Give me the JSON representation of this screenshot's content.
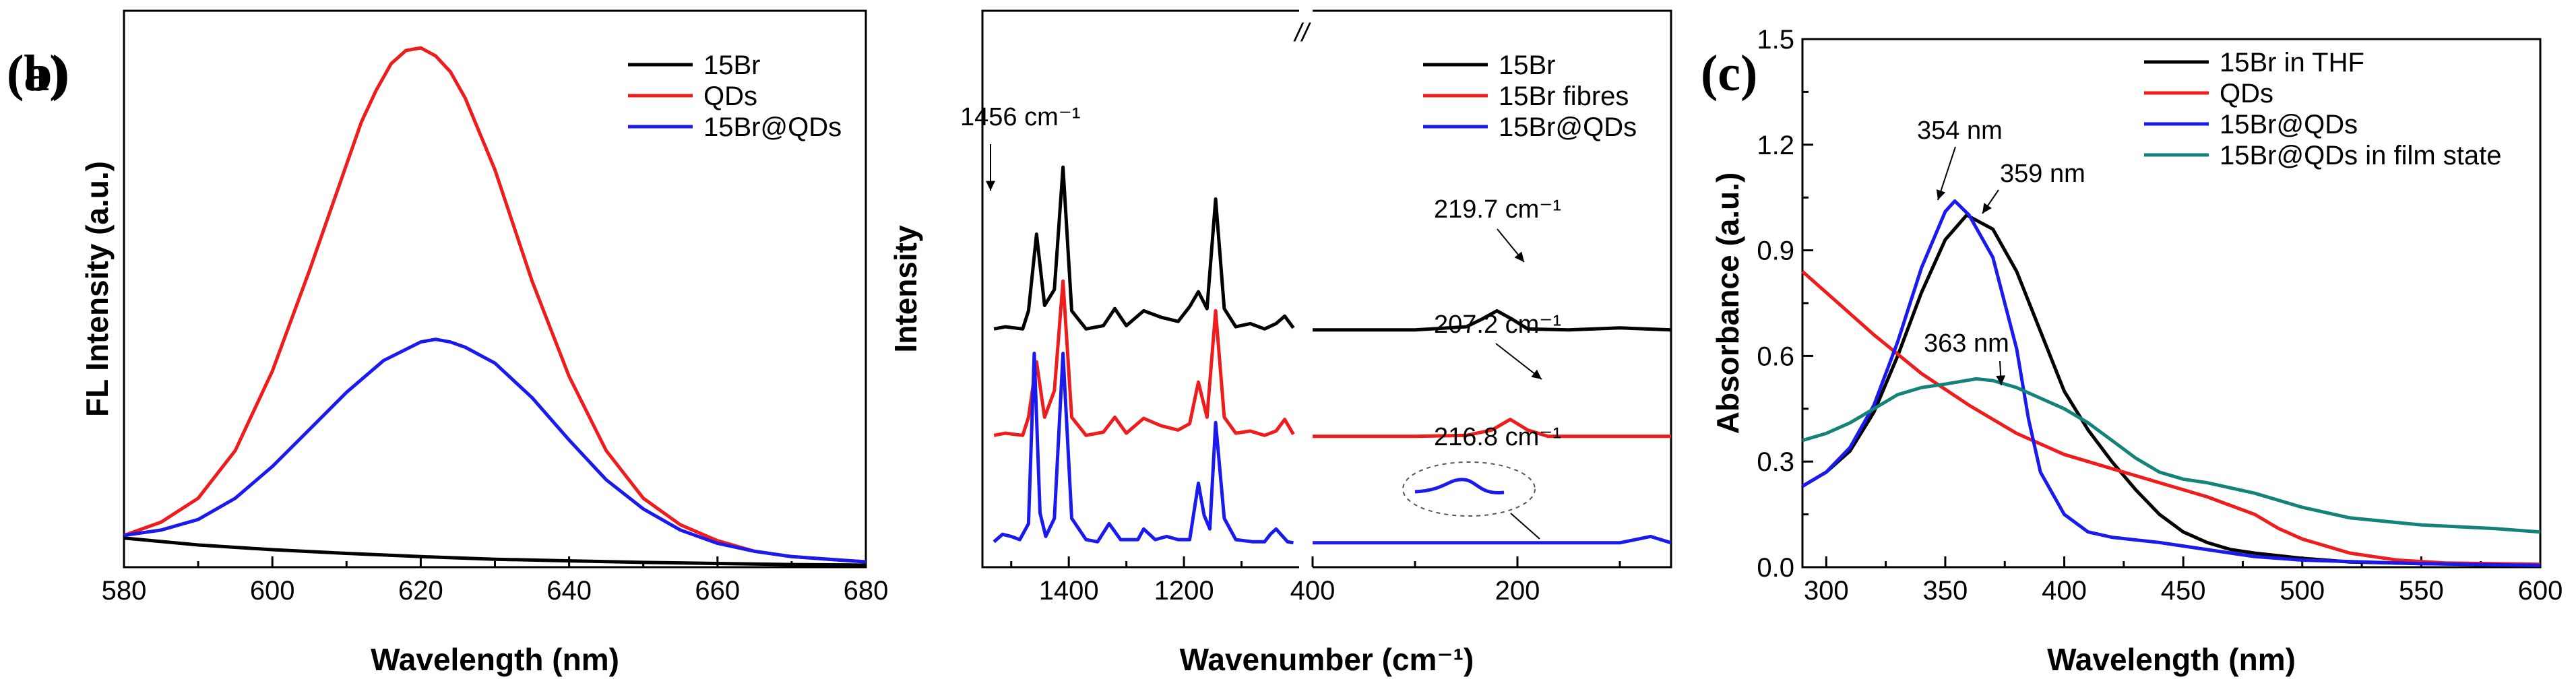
{
  "chart_data": [
    {
      "panel": "(a)",
      "type": "line",
      "xlabel": "Wavelength (nm)",
      "ylabel": "FL Intensity (a.u.)",
      "xlim": [
        580,
        680
      ],
      "xticks": [
        580,
        600,
        620,
        640,
        660,
        680
      ],
      "ylim": [
        0,
        1.05
      ],
      "legend_position": "top-right",
      "series": [
        {
          "name": "15Br",
          "color": "#000000",
          "x": [
            580,
            590,
            600,
            610,
            620,
            630,
            640,
            650,
            660,
            670,
            680
          ],
          "y": [
            0.055,
            0.042,
            0.033,
            0.026,
            0.02,
            0.015,
            0.012,
            0.009,
            0.007,
            0.005,
            0.004
          ]
        },
        {
          "name": "QDs",
          "color": "#ee1c1c",
          "x": [
            580,
            585,
            590,
            595,
            600,
            605,
            610,
            612,
            614,
            616,
            618,
            620,
            622,
            624,
            626,
            630,
            635,
            640,
            645,
            650,
            655,
            660,
            665,
            670,
            675,
            680
          ],
          "y": [
            0.06,
            0.085,
            0.13,
            0.22,
            0.37,
            0.56,
            0.76,
            0.84,
            0.9,
            0.95,
            0.975,
            0.98,
            0.965,
            0.935,
            0.885,
            0.75,
            0.54,
            0.36,
            0.22,
            0.13,
            0.08,
            0.05,
            0.03,
            0.02,
            0.015,
            0.01
          ]
        },
        {
          "name": "15Br@QDs",
          "color": "#1a1aee",
          "x": [
            580,
            585,
            590,
            595,
            600,
            605,
            610,
            615,
            620,
            622,
            624,
            626,
            630,
            635,
            640,
            645,
            650,
            655,
            660,
            665,
            670,
            675,
            680
          ],
          "y": [
            0.06,
            0.07,
            0.09,
            0.13,
            0.19,
            0.26,
            0.33,
            0.39,
            0.425,
            0.43,
            0.425,
            0.415,
            0.385,
            0.32,
            0.24,
            0.165,
            0.11,
            0.07,
            0.045,
            0.03,
            0.02,
            0.015,
            0.01
          ]
        }
      ]
    },
    {
      "panel": "(b)",
      "type": "line",
      "xlabel": "Wavenumber (cm⁻¹)",
      "ylabel": "Intensity",
      "segments": [
        {
          "xlim": [
            1550,
            1000
          ],
          "xticks": [
            1400,
            1200
          ],
          "tick_labels": [
            "1400",
            "1200"
          ]
        },
        {
          "xlim": [
            400,
            50
          ],
          "xticks": [
            400,
            200
          ],
          "tick_labels": [
            "400",
            "200"
          ]
        }
      ],
      "axis_break": "//",
      "legend_position": "top-right",
      "series": [
        {
          "name": "15Br",
          "color": "#000000",
          "offset": 2.0,
          "x": [
            1530,
            1510,
            1480,
            1470,
            1456,
            1442,
            1425,
            1410,
            1395,
            1370,
            1340,
            1320,
            1300,
            1270,
            1240,
            1210,
            1190,
            1175,
            1160,
            1145,
            1130,
            1110,
            1085,
            1060,
            1040,
            1025,
            1010,
            400,
            300,
            250,
            235,
            220,
            205,
            190,
            150,
            100,
            50
          ],
          "y": [
            0.03,
            0.05,
            0.03,
            0.2,
            0.92,
            0.25,
            0.4,
            1.55,
            0.2,
            0.03,
            0.06,
            0.22,
            0.06,
            0.2,
            0.14,
            0.1,
            0.24,
            0.38,
            0.22,
            1.25,
            0.22,
            0.05,
            0.08,
            0.03,
            0.08,
            0.15,
            0.04,
            0.02,
            0.02,
            0.05,
            0.12,
            0.2,
            0.12,
            0.03,
            0.02,
            0.04,
            0.02
          ]
        },
        {
          "name": "15Br fibres",
          "color": "#ee1c1c",
          "offset": 1.0,
          "x": [
            1530,
            1510,
            1480,
            1470,
            1456,
            1442,
            1425,
            1410,
            1395,
            1370,
            1340,
            1320,
            1300,
            1270,
            1240,
            1210,
            1190,
            1175,
            1160,
            1145,
            1130,
            1110,
            1085,
            1060,
            1040,
            1025,
            1010,
            400,
            300,
            250,
            225,
            207,
            190,
            170,
            100,
            50
          ],
          "y": [
            0.03,
            0.05,
            0.03,
            0.2,
            0.72,
            0.2,
            0.45,
            1.48,
            0.2,
            0.03,
            0.06,
            0.2,
            0.05,
            0.19,
            0.12,
            0.08,
            0.14,
            0.53,
            0.2,
            1.2,
            0.2,
            0.05,
            0.07,
            0.03,
            0.07,
            0.18,
            0.04,
            0.02,
            0.02,
            0.03,
            0.08,
            0.18,
            0.08,
            0.02,
            0.02,
            0.02
          ]
        },
        {
          "name": "15Br@QDs",
          "color": "#1a1aee",
          "offset": 0.0,
          "x": [
            1530,
            1515,
            1500,
            1485,
            1470,
            1460,
            1450,
            1440,
            1425,
            1410,
            1395,
            1370,
            1350,
            1330,
            1310,
            1280,
            1270,
            1250,
            1230,
            1210,
            1190,
            1175,
            1165,
            1155,
            1145,
            1130,
            1110,
            1080,
            1060,
            1050,
            1040,
            1020,
            1010,
            400,
            300,
            250,
            230,
            217,
            200,
            150,
            100,
            70,
            50
          ],
          "y": [
            0.03,
            0.1,
            0.08,
            0.05,
            0.2,
            1.8,
            0.3,
            0.08,
            0.25,
            1.8,
            0.25,
            0.05,
            0.03,
            0.2,
            0.05,
            0.05,
            0.15,
            0.05,
            0.08,
            0.05,
            0.05,
            0.58,
            0.28,
            0.15,
            1.15,
            0.25,
            0.05,
            0.03,
            0.03,
            0.1,
            0.15,
            0.03,
            0.02,
            0.02,
            0.02,
            0.02,
            0.02,
            0.02,
            0.02,
            0.02,
            0.02,
            0.08,
            0.02
          ]
        }
      ],
      "annotations": [
        "1456 cm⁻¹",
        "219.7 cm⁻¹",
        "207.2 cm⁻¹",
        "216.8 cm⁻¹"
      ]
    },
    {
      "panel": "(c)",
      "type": "line",
      "xlabel": "Wavelength (nm)",
      "ylabel": "Absorbance (a.u.)",
      "xlim": [
        290,
        600
      ],
      "xticks": [
        300,
        350,
        400,
        450,
        500,
        550,
        600
      ],
      "ylim": [
        0,
        1.5
      ],
      "yticks": [
        0.0,
        0.3,
        0.6,
        0.9,
        1.2,
        1.5
      ],
      "ytick_labels": [
        "0.0",
        "0.3",
        "0.6",
        "0.9",
        "1.2",
        "1.5"
      ],
      "legend_position": "top-right",
      "series": [
        {
          "name": "15Br in THF",
          "color": "#000000",
          "x": [
            290,
            300,
            310,
            320,
            330,
            340,
            350,
            359,
            370,
            380,
            390,
            400,
            410,
            420,
            430,
            440,
            450,
            460,
            470,
            480,
            500,
            520,
            550,
            580,
            600
          ],
          "y": [
            0.23,
            0.27,
            0.33,
            0.44,
            0.6,
            0.78,
            0.93,
            1.0,
            0.96,
            0.84,
            0.67,
            0.5,
            0.39,
            0.3,
            0.22,
            0.15,
            0.1,
            0.07,
            0.05,
            0.04,
            0.025,
            0.015,
            0.01,
            0.008,
            0.005
          ]
        },
        {
          "name": "QDs",
          "color": "#ee1c1c",
          "x": [
            290,
            300,
            320,
            340,
            360,
            380,
            400,
            420,
            440,
            460,
            480,
            490,
            500,
            510,
            520,
            530,
            540,
            560,
            580,
            600
          ],
          "y": [
            0.84,
            0.78,
            0.66,
            0.55,
            0.46,
            0.38,
            0.32,
            0.28,
            0.24,
            0.2,
            0.15,
            0.11,
            0.08,
            0.06,
            0.04,
            0.03,
            0.02,
            0.012,
            0.01,
            0.008
          ]
        },
        {
          "name": "15Br@QDs",
          "color": "#1a1aee",
          "x": [
            290,
            300,
            310,
            320,
            330,
            340,
            350,
            354,
            360,
            370,
            380,
            385,
            390,
            400,
            410,
            420,
            440,
            460,
            480,
            500,
            550,
            600
          ],
          "y": [
            0.23,
            0.27,
            0.34,
            0.46,
            0.64,
            0.85,
            1.01,
            1.04,
            1.0,
            0.88,
            0.62,
            0.42,
            0.27,
            0.15,
            0.1,
            0.085,
            0.07,
            0.05,
            0.03,
            0.02,
            0.01,
            0.005
          ]
        },
        {
          "name": "15Br@QDs in film state",
          "color": "#13837a",
          "x": [
            290,
            300,
            310,
            320,
            330,
            340,
            350,
            363,
            370,
            380,
            390,
            400,
            410,
            420,
            430,
            440,
            450,
            460,
            480,
            500,
            520,
            550,
            580,
            600
          ],
          "y": [
            0.36,
            0.38,
            0.41,
            0.45,
            0.49,
            0.51,
            0.52,
            0.535,
            0.53,
            0.51,
            0.48,
            0.45,
            0.41,
            0.36,
            0.31,
            0.27,
            0.25,
            0.24,
            0.21,
            0.17,
            0.14,
            0.12,
            0.11,
            0.1
          ]
        }
      ],
      "annotations": [
        "354 nm",
        "359 nm",
        "363 nm"
      ]
    }
  ]
}
